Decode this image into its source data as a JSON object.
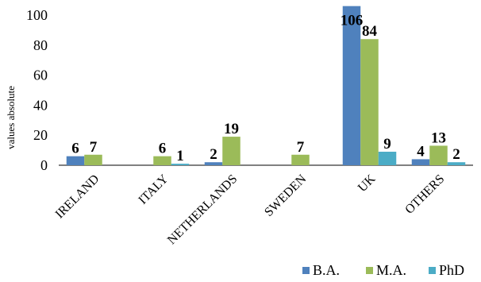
{
  "chart_data": {
    "type": "bar",
    "title": "",
    "xlabel": "",
    "ylabel": "values absolute",
    "ylim": [
      0,
      100
    ],
    "yticks": [
      0,
      20,
      40,
      60,
      80,
      100
    ],
    "grid": false,
    "legend_position": "bottom-right",
    "categories": [
      "IRELAND",
      "ITALY",
      "NETHERLANDS",
      "SWEDEN",
      "UK",
      "OTHERS"
    ],
    "series": [
      {
        "name": "B.A.",
        "color": "#4f81bd",
        "values": [
          6,
          0,
          2,
          0,
          106,
          4
        ],
        "labels": [
          "6",
          "",
          "2",
          "",
          "106",
          "4"
        ]
      },
      {
        "name": "M.A.",
        "color": "#9bbb59",
        "values": [
          7,
          6,
          19,
          7,
          84,
          13
        ],
        "labels": [
          "7",
          "6",
          "19",
          "7",
          "84",
          "13"
        ]
      },
      {
        "name": "PhD",
        "color": "#4bacc6",
        "values": [
          0,
          1,
          0,
          0,
          9,
          2
        ],
        "labels": [
          "",
          "1",
          "",
          "",
          "9",
          "2"
        ]
      }
    ]
  }
}
